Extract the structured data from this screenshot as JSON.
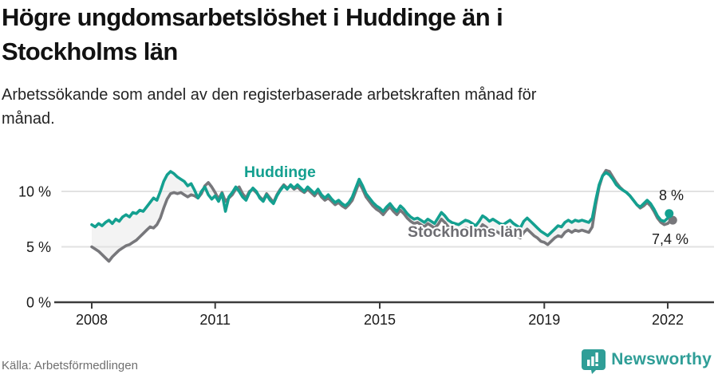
{
  "header": {
    "title_line1": "Högre ungdomsarbetslöshet i Huddinge än i",
    "title_line2": "Stockholms län",
    "subtitle_line1": "Arbetssökande som andel av den registerbaserade arbetskraften månad för",
    "subtitle_line2": "månad."
  },
  "chart_data": {
    "type": "line",
    "title": "Högre ungdomsarbetslöshet i Huddinge än i Stockholms län",
    "subtitle": "Arbetssökande som andel av den registerbaserade arbetskraften månad för månad.",
    "x_start_year": 2008,
    "x_step_months": 1,
    "x_end": "2022-02",
    "x_axis_ticks": [
      2008,
      2011,
      2015,
      2019,
      2022
    ],
    "y_axis_ticks": [
      {
        "value": 0,
        "label": "0 %"
      },
      {
        "value": 5,
        "label": "5 %"
      },
      {
        "value": 10,
        "label": "10 %"
      }
    ],
    "ylim": [
      0,
      13.2
    ],
    "grid": "horizontal",
    "legend_position": "inline-labels",
    "series": [
      {
        "name": "Huddinge",
        "color": "#14a090",
        "end_label": "8 %",
        "end_value": 8.0,
        "values": [
          7.0,
          6.8,
          7.1,
          6.9,
          7.2,
          7.4,
          7.1,
          7.5,
          7.3,
          7.7,
          7.9,
          7.7,
          8.1,
          8.0,
          8.3,
          8.2,
          8.6,
          9.0,
          9.4,
          9.2,
          10.0,
          10.9,
          11.5,
          11.8,
          11.6,
          11.3,
          11.1,
          10.9,
          10.5,
          10.7,
          10.1,
          9.4,
          10.0,
          10.4,
          9.7,
          9.3,
          9.6,
          9.1,
          9.8,
          8.2,
          9.5,
          9.9,
          10.4,
          10.0,
          9.5,
          9.2,
          9.9,
          10.3,
          10.0,
          9.4,
          9.1,
          9.7,
          9.2,
          8.9,
          9.6,
          10.1,
          10.5,
          10.2,
          10.6,
          10.3,
          10.6,
          10.3,
          10.0,
          10.4,
          10.1,
          9.8,
          10.2,
          9.7,
          9.4,
          9.7,
          9.3,
          9.0,
          9.2,
          8.9,
          8.7,
          9.0,
          9.5,
          10.3,
          11.1,
          10.5,
          9.8,
          9.4,
          9.0,
          8.7,
          8.5,
          8.2,
          8.6,
          8.9,
          8.5,
          8.2,
          8.7,
          8.4,
          8.0,
          7.7,
          7.5,
          7.6,
          7.4,
          7.2,
          7.5,
          7.3,
          7.1,
          7.6,
          8.1,
          7.8,
          7.4,
          7.2,
          7.1,
          7.0,
          7.2,
          7.4,
          7.3,
          7.1,
          6.9,
          7.3,
          7.8,
          7.6,
          7.3,
          7.5,
          7.3,
          7.1,
          7.0,
          7.2,
          7.4,
          7.1,
          6.9,
          6.7,
          7.3,
          7.6,
          7.3,
          7.0,
          6.7,
          6.4,
          6.2,
          6.0,
          6.3,
          6.6,
          6.9,
          6.8,
          7.2,
          7.4,
          7.2,
          7.4,
          7.3,
          7.4,
          7.3,
          7.2,
          7.6,
          9.2,
          10.6,
          11.4,
          11.7,
          11.5,
          11.1,
          10.6,
          10.3,
          10.1,
          9.9,
          9.6,
          9.2,
          8.8,
          8.6,
          8.9,
          9.2,
          8.9,
          8.4,
          7.8,
          7.4,
          7.3,
          7.6,
          8.0
        ]
      },
      {
        "name": "Stockholms län",
        "color": "#77777b",
        "end_label": "7,4 %",
        "end_value": 7.4,
        "values": [
          5.0,
          4.8,
          4.6,
          4.3,
          4.0,
          3.7,
          4.1,
          4.4,
          4.7,
          4.9,
          5.1,
          5.2,
          5.4,
          5.6,
          5.9,
          6.2,
          6.5,
          6.8,
          6.7,
          7.0,
          7.6,
          8.5,
          9.3,
          9.8,
          9.9,
          9.8,
          9.9,
          9.7,
          9.5,
          9.7,
          9.6,
          9.4,
          9.8,
          10.5,
          10.8,
          10.4,
          9.9,
          9.3,
          9.9,
          9.1,
          9.4,
          9.7,
          10.2,
          10.4,
          9.8,
          9.4,
          10.0,
          10.2,
          9.9,
          9.5,
          9.2,
          9.8,
          9.4,
          9.0,
          9.7,
          10.2,
          10.6,
          10.3,
          10.5,
          10.2,
          10.4,
          10.1,
          9.9,
          10.2,
          9.9,
          9.6,
          10.0,
          9.5,
          9.2,
          9.4,
          9.1,
          8.8,
          9.0,
          8.7,
          8.5,
          8.8,
          9.2,
          10.0,
          10.8,
          10.2,
          9.5,
          9.1,
          8.7,
          8.4,
          8.2,
          7.9,
          8.3,
          8.6,
          8.2,
          7.9,
          8.3,
          8.0,
          7.6,
          7.3,
          7.1,
          7.2,
          7.0,
          6.8,
          7.1,
          6.9,
          6.7,
          7.0,
          7.5,
          7.2,
          6.8,
          6.6,
          6.5,
          6.4,
          6.5,
          6.7,
          6.6,
          6.4,
          6.2,
          6.5,
          7.0,
          6.8,
          6.5,
          6.6,
          6.4,
          6.2,
          6.1,
          6.3,
          6.4,
          6.2,
          6.0,
          5.8,
          6.3,
          6.6,
          6.3,
          6.0,
          5.8,
          5.5,
          5.4,
          5.2,
          5.5,
          5.8,
          6.0,
          5.9,
          6.3,
          6.5,
          6.3,
          6.5,
          6.4,
          6.5,
          6.4,
          6.3,
          6.8,
          8.8,
          10.4,
          11.4,
          11.9,
          11.8,
          11.3,
          10.8,
          10.4,
          10.1,
          9.9,
          9.6,
          9.2,
          8.8,
          8.5,
          8.7,
          9.0,
          8.7,
          8.2,
          7.6,
          7.2,
          7.0,
          7.1,
          7.4
        ]
      }
    ]
  },
  "footer": {
    "source": "Källa: Arbetsförmedlingen",
    "brand": "Newsworthy"
  },
  "colors": {
    "huddinge": "#14a090",
    "stockholm_line": "#77777b",
    "stockholm_label": "#6d6d72",
    "grid": "#e2e2e2",
    "axis": "#3c3c3c",
    "text_dark": "#1a1a1a",
    "brand_teal": "#2f9e97",
    "between_fill": "#a0a0a0"
  }
}
